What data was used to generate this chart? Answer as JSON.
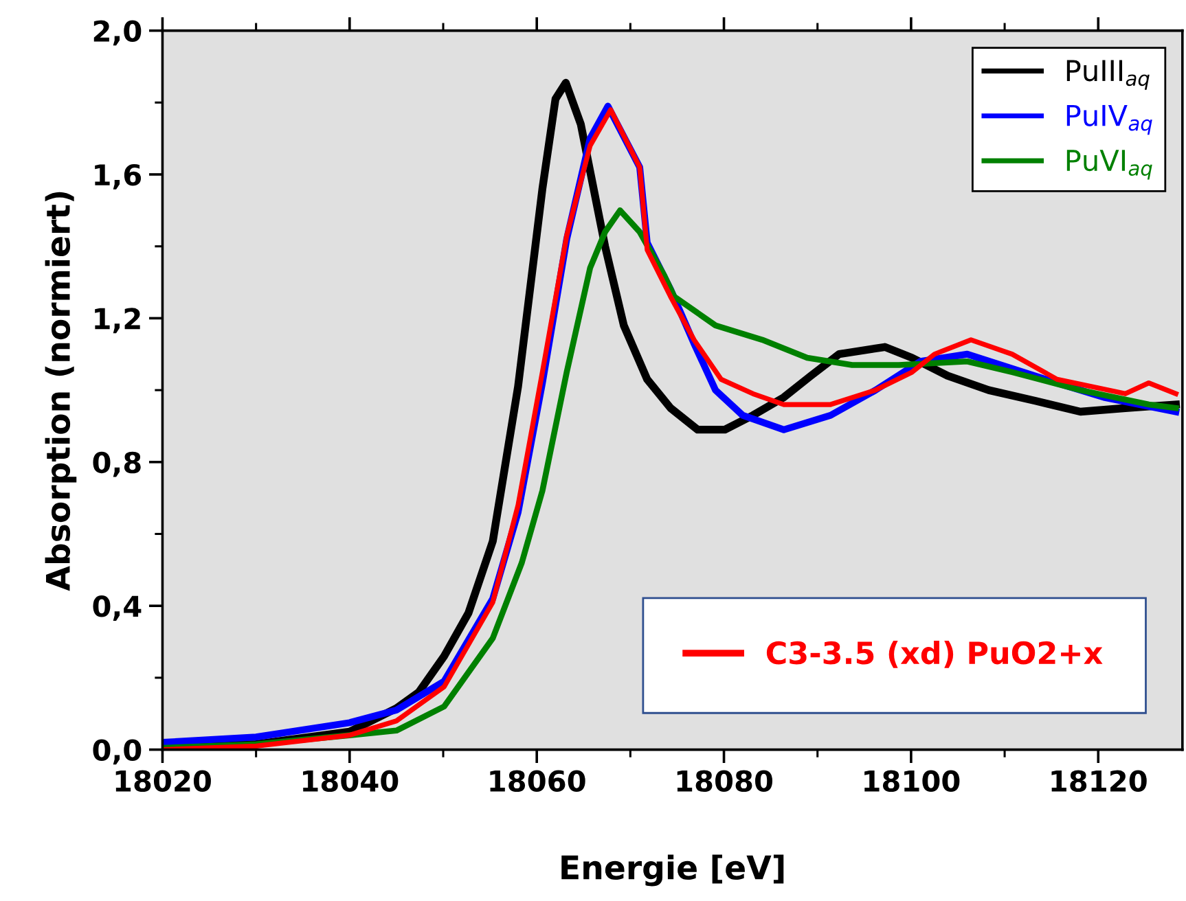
{
  "chart_data": {
    "type": "line",
    "xlabel": "Energie [eV]",
    "ylabel": "Absorption (normiert)",
    "xlim": [
      18020,
      18129
    ],
    "ylim": [
      0,
      2.0
    ],
    "xticks": [
      18020,
      18040,
      18060,
      18080,
      18100,
      18120
    ],
    "yticks": [
      {
        "value": 0,
        "label": "0,0"
      },
      {
        "value": 0.4,
        "label": "0,4"
      },
      {
        "value": 0.8,
        "label": "0,8"
      },
      {
        "value": 1.2,
        "label": "1,2"
      },
      {
        "value": 1.6,
        "label": "1,6"
      },
      {
        "value": 2.0,
        "label": "2,0"
      }
    ],
    "legend": "top right",
    "grid": false,
    "marker": "none",
    "line_style": "solid",
    "series": [
      {
        "name": "PuIII$_{aq}$",
        "color": "#000000",
        "x": [
          18020,
          18030,
          18040,
          18045,
          18047.4,
          18050.1,
          18052.7,
          18055.3,
          18058,
          18060.6,
          18062,
          18063.1,
          18064.7,
          18067.3,
          18069.3,
          18071.8,
          18074.3,
          18077.2,
          18080.1,
          18083.1,
          18086.4,
          18089.3,
          18092.3,
          18097.2,
          18100.1,
          18103.9,
          18108.3,
          18113.3,
          18118.1,
          18122.9,
          18128.3
        ],
        "values": [
          0.005,
          0.015,
          0.05,
          0.115,
          0.16,
          0.26,
          0.38,
          0.58,
          1.01,
          1.56,
          1.81,
          1.855,
          1.74,
          1.4,
          1.18,
          1.03,
          0.95,
          0.89,
          0.89,
          0.93,
          0.98,
          1.04,
          1.1,
          1.12,
          1.09,
          1.04,
          1.0,
          0.97,
          0.94,
          0.95,
          0.96
        ]
      },
      {
        "name": "PuIV$_{aq}$",
        "color": "#0000ff",
        "x": [
          18020,
          18030,
          18040,
          18045,
          18050.1,
          18055.3,
          18058,
          18060.6,
          18063.2,
          18065.7,
          18067.6,
          18071,
          18071.8,
          18074.3,
          18076.8,
          18079.1,
          18082,
          18086.4,
          18091.4,
          18096.2,
          18101,
          18106,
          18110.8,
          18115.6,
          18120.6,
          18128.3
        ],
        "values": [
          0.02,
          0.035,
          0.075,
          0.11,
          0.19,
          0.42,
          0.66,
          1.02,
          1.42,
          1.7,
          1.79,
          1.62,
          1.41,
          1.28,
          1.13,
          1.0,
          0.93,
          0.89,
          0.93,
          1.0,
          1.08,
          1.1,
          1.06,
          1.02,
          0.98,
          0.94
        ]
      },
      {
        "name": "PuVI$_{aq}$",
        "color": "#008000",
        "x": [
          18020,
          18030,
          18040,
          18045,
          18050.1,
          18055.3,
          18058.4,
          18060.6,
          18063.2,
          18065.7,
          18067.3,
          18068.9,
          18071,
          18073.6,
          18074.7,
          18079.1,
          18084.1,
          18088.9,
          18093.7,
          18098.7,
          18106,
          18110.8,
          18118.1,
          18125.4,
          18128.3
        ],
        "values": [
          0.005,
          0.015,
          0.04,
          0.053,
          0.12,
          0.31,
          0.52,
          0.72,
          1.05,
          1.34,
          1.44,
          1.5,
          1.44,
          1.32,
          1.26,
          1.18,
          1.14,
          1.09,
          1.07,
          1.07,
          1.08,
          1.05,
          1.0,
          0.96,
          0.95
        ]
      },
      {
        "name": "C3-3.5 (xd) PuO2+x",
        "color": "#ff0000",
        "x": [
          18020,
          18030,
          18040,
          18045,
          18050.1,
          18055.3,
          18058,
          18060.6,
          18063.2,
          18065.7,
          18067.9,
          18071,
          18071.8,
          18074.3,
          18076.8,
          18079.7,
          18083.1,
          18086.4,
          18091.4,
          18096.2,
          18100.1,
          18102.5,
          18106.4,
          18110.8,
          18115.6,
          18122.9,
          18125.4,
          18128.3
        ],
        "values": [
          0.0,
          0.01,
          0.04,
          0.08,
          0.175,
          0.41,
          0.68,
          1.05,
          1.43,
          1.68,
          1.78,
          1.62,
          1.39,
          1.26,
          1.14,
          1.03,
          0.99,
          0.96,
          0.96,
          1.0,
          1.05,
          1.1,
          1.14,
          1.1,
          1.03,
          0.99,
          1.02,
          0.99
        ]
      }
    ]
  }
}
